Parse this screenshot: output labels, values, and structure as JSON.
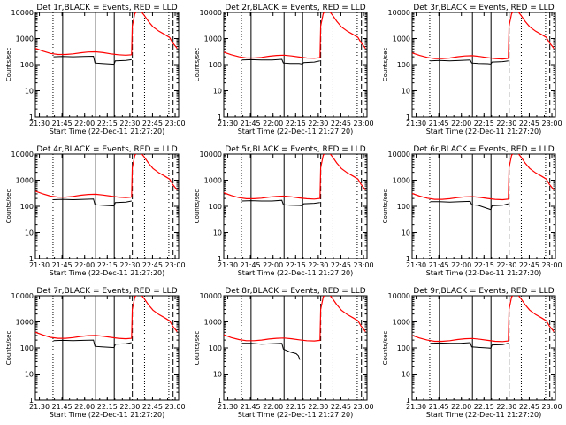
{
  "chart_data": {
    "type": "line",
    "layout": "3x3 grid",
    "ylabel": "Counts/sec",
    "xlabel": "Start Time (22-Dec-11 21:27:20)",
    "yscale": "log",
    "ylim": [
      1,
      10000
    ],
    "y_ticks": [
      "1",
      "10",
      "100",
      "1000",
      "10000"
    ],
    "xlim": [
      0,
      95
    ],
    "x_ticks": [
      {
        "label": "21:30",
        "t": 2.67
      },
      {
        "label": "21:45",
        "t": 17.67
      },
      {
        "label": "22:00",
        "t": 32.67
      },
      {
        "label": "22:15",
        "t": 47.67
      },
      {
        "label": "22:30",
        "t": 62.67
      },
      {
        "label": "22:45",
        "t": 77.67
      },
      {
        "label": "23:00",
        "t": 92.67
      }
    ],
    "x_unit": "minutes since 21:27:20",
    "vertical_markers": {
      "dotted": [
        11.7,
        72.4,
        88.5
      ],
      "solid": [
        18.1,
        40.0,
        52.3
      ],
      "dashed": [
        64.3,
        91.3
      ]
    },
    "series_legend": {
      "black": "Events",
      "red": "LLD"
    },
    "colors": {
      "events": "#000000",
      "lld": "#ff0000",
      "axes": "#000000"
    },
    "panels": [
      {
        "title": "Det 1r,BLACK = Events, RED = LLD",
        "events": {
          "x": [
            12,
            18,
            25,
            32,
            38.5,
            39.5,
            44,
            50,
            52.2,
            53,
            60,
            63.8
          ],
          "y": [
            200,
            205,
            200,
            205,
            210,
            115,
            110,
            105,
            103,
            140,
            145,
            155
          ]
        },
        "lld": {
          "x": [
            0,
            5,
            10,
            15,
            20,
            25,
            30,
            35,
            40,
            45,
            50,
            55,
            60,
            63.8,
            64.3,
            66,
            68,
            70,
            72,
            75,
            78,
            82,
            86,
            89,
            91,
            94
          ],
          "y": [
            420,
            330,
            270,
            245,
            245,
            260,
            285,
            305,
            310,
            290,
            260,
            240,
            230,
            240,
            3000,
            9000,
            12000,
            11000,
            8000,
            4500,
            2800,
            1900,
            1400,
            1100,
            700,
            420
          ]
        }
      },
      {
        "title": "Det 2r,BLACK = Events, RED = LLD",
        "events": {
          "x": [
            12,
            18,
            25,
            32,
            38.5,
            39.5,
            44,
            50,
            52.2,
            53,
            60,
            63.8
          ],
          "y": [
            150,
            155,
            150,
            150,
            160,
            115,
            110,
            110,
            105,
            120,
            125,
            140
          ]
        },
        "lld": {
          "x": [
            0,
            5,
            10,
            15,
            20,
            25,
            30,
            35,
            40,
            45,
            50,
            55,
            60,
            63.8,
            64.3,
            66,
            68,
            70,
            72,
            75,
            78,
            82,
            86,
            89,
            91,
            94
          ],
          "y": [
            300,
            240,
            200,
            180,
            180,
            190,
            210,
            225,
            230,
            215,
            195,
            180,
            175,
            185,
            3000,
            9000,
            12000,
            11000,
            8000,
            4500,
            2800,
            1900,
            1400,
            1100,
            700,
            420
          ]
        }
      },
      {
        "title": "Det 3r,BLACK = Events, RED = LLD",
        "events": {
          "x": [
            12,
            18,
            25,
            32,
            38.5,
            39.5,
            44,
            50,
            52.2,
            53,
            60,
            63.8
          ],
          "y": [
            140,
            145,
            140,
            145,
            150,
            115,
            110,
            108,
            105,
            125,
            130,
            140
          ]
        },
        "lld": {
          "x": [
            0,
            5,
            10,
            15,
            20,
            25,
            30,
            35,
            40,
            45,
            50,
            55,
            60,
            63.8,
            64.3,
            66,
            68,
            70,
            72,
            75,
            78,
            82,
            86,
            89,
            91,
            94
          ],
          "y": [
            280,
            225,
            190,
            170,
            170,
            180,
            200,
            215,
            220,
            205,
            185,
            170,
            165,
            175,
            3000,
            9000,
            12000,
            11000,
            8000,
            4500,
            2800,
            1900,
            1400,
            1100,
            700,
            420
          ]
        }
      },
      {
        "title": "Det 4r,BLACK = Events, RED = LLD",
        "events": {
          "x": [
            12,
            18,
            25,
            32,
            38.5,
            39.5,
            44,
            50,
            52.2,
            53,
            60,
            63.8
          ],
          "y": [
            180,
            185,
            180,
            185,
            190,
            115,
            110,
            105,
            103,
            140,
            145,
            160
          ]
        },
        "lld": {
          "x": [
            0,
            5,
            10,
            15,
            20,
            25,
            30,
            35,
            40,
            45,
            50,
            55,
            60,
            63.8,
            64.3,
            66,
            68,
            70,
            72,
            75,
            78,
            82,
            86,
            89,
            91,
            94
          ],
          "y": [
            380,
            300,
            245,
            225,
            225,
            240,
            265,
            285,
            290,
            270,
            245,
            225,
            215,
            225,
            3000,
            9000,
            12000,
            11000,
            8000,
            4500,
            2800,
            1900,
            1400,
            1100,
            700,
            420
          ]
        }
      },
      {
        "title": "Det 5r,BLACK = Events, RED = LLD",
        "events": {
          "x": [
            12,
            18,
            25,
            32,
            38.5,
            39.5,
            44,
            50,
            52.2,
            53,
            60,
            63.8
          ],
          "y": [
            160,
            165,
            160,
            160,
            170,
            115,
            110,
            108,
            105,
            125,
            130,
            140
          ]
        },
        "lld": {
          "x": [
            0,
            5,
            10,
            15,
            20,
            25,
            30,
            35,
            40,
            45,
            50,
            55,
            60,
            63.8,
            64.3,
            66,
            68,
            70,
            72,
            75,
            78,
            82,
            86,
            89,
            91,
            94
          ],
          "y": [
            330,
            260,
            215,
            195,
            195,
            205,
            225,
            240,
            245,
            230,
            210,
            195,
            190,
            200,
            3000,
            9000,
            12000,
            11000,
            8000,
            4500,
            2800,
            1900,
            1400,
            1100,
            700,
            420
          ]
        }
      },
      {
        "title": "Det 6r,BLACK = Events, RED = LLD",
        "events": {
          "x": [
            12,
            18,
            25,
            32,
            38.5,
            39.5,
            44,
            50,
            52.2,
            53,
            60,
            63.8
          ],
          "y": [
            150,
            150,
            145,
            150,
            155,
            115,
            108,
            82,
            75,
            105,
            110,
            125
          ]
        },
        "lld": {
          "x": [
            0,
            5,
            10,
            15,
            20,
            25,
            30,
            35,
            40,
            45,
            50,
            55,
            60,
            63.8,
            64.3,
            66,
            68,
            70,
            72,
            75,
            78,
            82,
            86,
            89,
            91,
            94
          ],
          "y": [
            310,
            245,
            205,
            185,
            185,
            195,
            215,
            230,
            235,
            220,
            200,
            185,
            180,
            190,
            3000,
            9000,
            12000,
            11000,
            8000,
            4500,
            2800,
            1900,
            1400,
            1100,
            700,
            420
          ]
        }
      },
      {
        "title": "Det 7r,BLACK = Events, RED = LLD",
        "events": {
          "x": [
            12,
            18,
            25,
            32,
            38.5,
            39.5,
            44,
            50,
            52.2,
            53,
            60,
            63.8
          ],
          "y": [
            190,
            195,
            190,
            195,
            200,
            115,
            110,
            105,
            103,
            140,
            145,
            160
          ]
        },
        "lld": {
          "x": [
            0,
            5,
            10,
            15,
            20,
            25,
            30,
            35,
            40,
            45,
            50,
            55,
            60,
            63.8,
            64.3,
            66,
            68,
            70,
            72,
            75,
            78,
            82,
            86,
            89,
            91,
            94
          ],
          "y": [
            400,
            315,
            255,
            235,
            235,
            250,
            275,
            295,
            300,
            280,
            255,
            235,
            225,
            235,
            3000,
            9000,
            12000,
            11000,
            8000,
            4500,
            2800,
            1900,
            1400,
            1100,
            700,
            420
          ]
        }
      },
      {
        "title": "Det 8r,BLACK = Events, RED = LLD",
        "events": {
          "x": [
            12,
            18,
            25,
            32,
            38.5,
            39.5,
            44,
            48,
            49.5,
            50.5
          ],
          "y": [
            150,
            150,
            140,
            145,
            150,
            90,
            70,
            60,
            50,
            35
          ]
        },
        "lld": {
          "x": [
            0,
            5,
            10,
            15,
            20,
            25,
            30,
            35,
            40,
            45,
            50,
            55,
            60,
            63.8,
            64.3,
            66,
            68,
            70,
            72,
            75,
            78,
            82,
            86,
            89,
            91,
            94
          ],
          "y": [
            320,
            250,
            210,
            190,
            190,
            200,
            220,
            235,
            240,
            225,
            205,
            190,
            185,
            195,
            3000,
            9000,
            12000,
            11000,
            8000,
            4500,
            2800,
            1900,
            1400,
            1100,
            700,
            420
          ]
        }
      },
      {
        "title": "Det 9r,BLACK = Events, RED = LLD",
        "events": {
          "x": [
            12,
            18,
            25,
            32,
            38.5,
            39.5,
            44,
            50,
            52.2,
            53,
            60,
            63.8
          ],
          "y": [
            150,
            155,
            150,
            150,
            160,
            110,
            105,
            100,
            98,
            130,
            135,
            150
          ]
        },
        "lld": {
          "x": [
            0,
            5,
            10,
            15,
            20,
            25,
            30,
            35,
            40,
            45,
            50,
            55,
            60,
            63.8,
            64.3,
            66,
            68,
            70,
            72,
            75,
            78,
            82,
            86,
            89,
            91,
            94
          ],
          "y": [
            300,
            240,
            200,
            180,
            180,
            190,
            210,
            225,
            230,
            215,
            195,
            180,
            175,
            185,
            3000,
            9000,
            12000,
            11000,
            8000,
            4500,
            2800,
            1900,
            1400,
            1100,
            700,
            420
          ]
        }
      }
    ]
  }
}
